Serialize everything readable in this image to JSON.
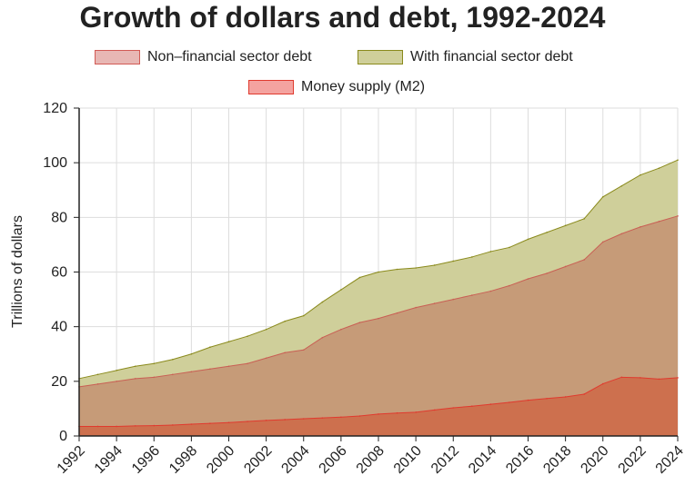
{
  "chart_data": {
    "type": "area",
    "title": "Growth of dollars and debt, 1992-2024",
    "xlabel": "",
    "ylabel": "Trillions of dollars",
    "ylim": [
      0,
      120
    ],
    "yticks": [
      0,
      20,
      40,
      60,
      80,
      100,
      120
    ],
    "xlim": [
      1992,
      2024
    ],
    "xticks": [
      "1992",
      "1994",
      "1996",
      "1998",
      "2000",
      "2002",
      "2004",
      "2006",
      "2008",
      "2010",
      "2012",
      "2014",
      "2016",
      "2018",
      "2020",
      "2022",
      "2024"
    ],
    "grid": true,
    "legend_placement": "top",
    "x": [
      1992,
      1993,
      1994,
      1995,
      1996,
      1997,
      1998,
      1999,
      2000,
      2001,
      2002,
      2003,
      2004,
      2005,
      2006,
      2007,
      2008,
      2009,
      2010,
      2011,
      2012,
      2013,
      2014,
      2015,
      2016,
      2017,
      2018,
      2019,
      2020,
      2021,
      2022,
      2023,
      2024
    ],
    "series": [
      {
        "name": "With financial sector debt",
        "fill": "#cfcf9a",
        "stroke": "#8a8a1c",
        "values": [
          21,
          22.5,
          24,
          25.5,
          26.5,
          28,
          30,
          32.5,
          34.5,
          36.5,
          39,
          42,
          44,
          49,
          53.5,
          58,
          60,
          61,
          61.5,
          62.5,
          64,
          65.5,
          67.5,
          69,
          72,
          74.5,
          77,
          79.5,
          87.5,
          91.5,
          95.5,
          98,
          101
        ]
      },
      {
        "name": "Non–financial sector debt",
        "fill": "#c69b78",
        "stroke": "#c95f54",
        "values": [
          18,
          19,
          20,
          21,
          21.5,
          22.5,
          23.5,
          24.5,
          25.5,
          26.5,
          28.5,
          30.5,
          31.5,
          36,
          39,
          41.5,
          43,
          45,
          47,
          48.5,
          50,
          51.5,
          53,
          55,
          57.5,
          59.5,
          62,
          64.5,
          71,
          74,
          76.5,
          78.5,
          80.5
        ]
      },
      {
        "name": "Money supply (M2)",
        "fill": "#cd704e",
        "stroke": "#e03a2e",
        "values": [
          3.5,
          3.5,
          3.5,
          3.7,
          3.8,
          4,
          4.3,
          4.6,
          4.9,
          5.3,
          5.7,
          6,
          6.3,
          6.6,
          6.9,
          7.3,
          8,
          8.4,
          8.7,
          9.5,
          10.3,
          10.9,
          11.6,
          12.3,
          13.1,
          13.7,
          14.3,
          15.3,
          19.1,
          21.5,
          21.3,
          20.8,
          21.3
        ]
      }
    ],
    "legend": [
      {
        "label": "Non–financial sector debt",
        "fill": "#e8b7b4",
        "stroke": "#d25a55"
      },
      {
        "label": "With financial sector debt",
        "fill": "#cfcf9a",
        "stroke": "#8a8a1c"
      },
      {
        "label": "Money supply (M2)",
        "fill": "#f4a3a0",
        "stroke": "#e03a2e"
      }
    ],
    "colors": {
      "grid": "#dddddd",
      "axis": "#222222"
    }
  }
}
